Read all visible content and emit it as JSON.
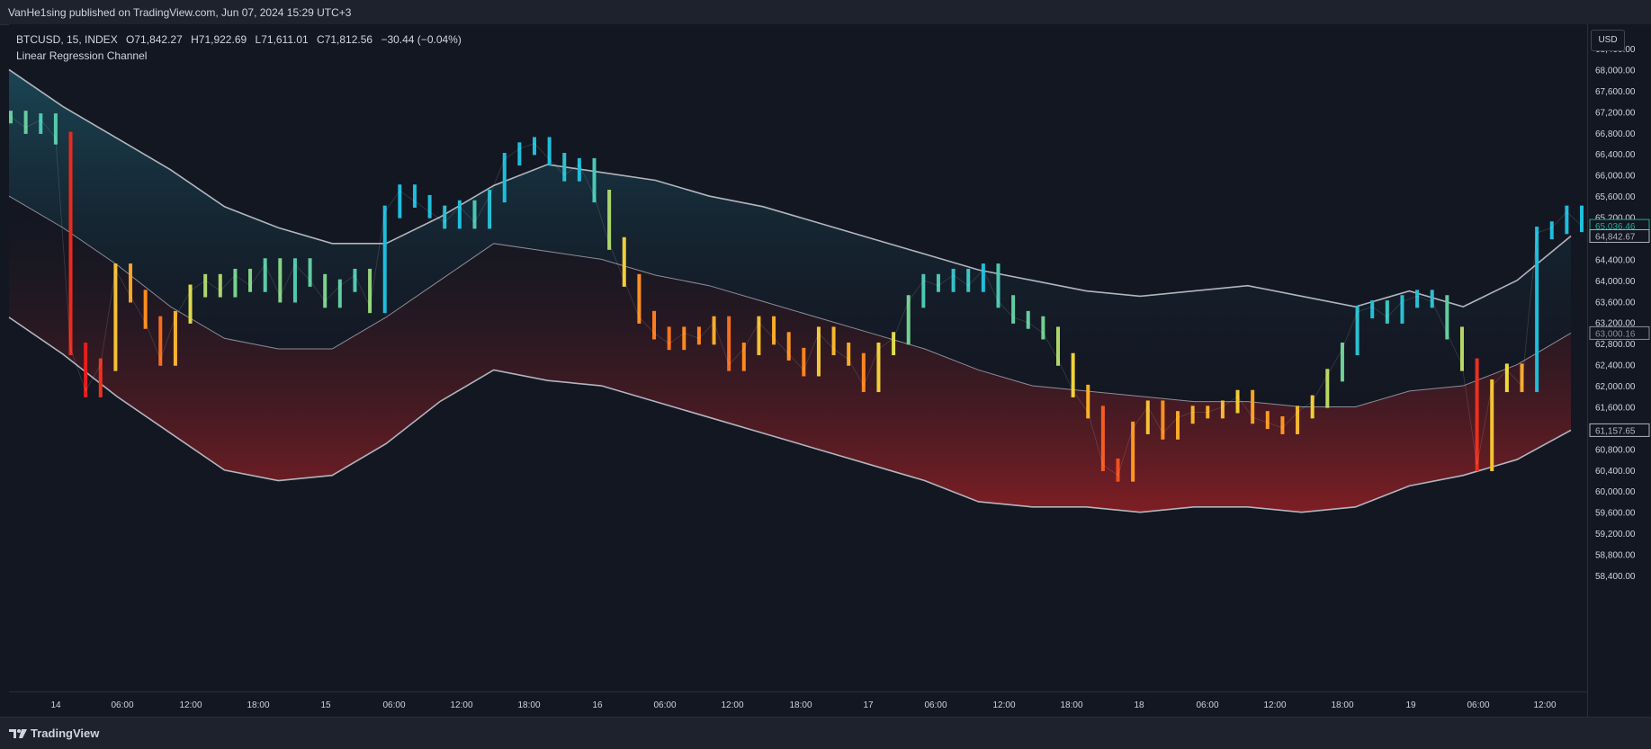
{
  "header": {
    "publisher_line": "VanHe1sing published on TradingView.com, Jun 07, 2024 15:29 UTC+3"
  },
  "legend": {
    "symbol": "BTCUSD, 15, INDEX",
    "open": "O71,842.27",
    "high": "H71,922.69",
    "low": "L71,611.01",
    "close": "C71,812.56",
    "change": "−30.44 (−0.04%)",
    "indicator": "Linear Regression Channel"
  },
  "price_axis": {
    "currency": "USD",
    "ticks": [
      "68,400.00",
      "68,000.00",
      "67,600.00",
      "67,200.00",
      "66,800.00",
      "66,400.00",
      "66,000.00",
      "65,600.00",
      "65,200.00",
      "64,800.00",
      "64,400.00",
      "64,000.00",
      "63,600.00",
      "63,200.00",
      "62,800.00",
      "62,400.00",
      "62,000.00",
      "61,600.00",
      "61,200.00",
      "60,800.00",
      "60,400.00",
      "60,000.00",
      "59,600.00",
      "59,200.00",
      "58,800.00",
      "58,400.00"
    ],
    "labels": {
      "last_price": "65,036.46",
      "upper_channel": "64,842.67",
      "mid_channel": "63,000.16",
      "lower_channel": "61,157.65"
    }
  },
  "time_axis": {
    "ticks": [
      "14",
      "06:00",
      "12:00",
      "18:00",
      "15",
      "06:00",
      "12:00",
      "18:00",
      "16",
      "06:00",
      "12:00",
      "18:00",
      "17",
      "06:00",
      "12:00",
      "18:00",
      "18",
      "06:00",
      "12:00",
      "18:00",
      "19",
      "06:00",
      "12:00"
    ]
  },
  "footer": {
    "brand": "TradingView"
  },
  "colors": {
    "background": "#131722",
    "channel_line": "#b2b5be",
    "mid_line": "#8a8e99",
    "upper_fill": "#1b4a5a",
    "lower_fill": "#8a1f24",
    "last_price_label": "#22ab94"
  },
  "chart_data": {
    "type": "line",
    "title": "BTCUSD, 15, INDEX",
    "ylim": [
      58000,
      68800
    ],
    "x_labels": [
      "14",
      "06:00",
      "12:00",
      "18:00",
      "15",
      "06:00",
      "12:00",
      "18:00",
      "16",
      "06:00",
      "12:00",
      "18:00",
      "17",
      "06:00",
      "12:00",
      "18:00",
      "18",
      "06:00",
      "12:00",
      "18:00",
      "19",
      "06:00",
      "12:00"
    ],
    "series": [
      {
        "name": "Price",
        "values": [
          67100,
          66900,
          67050,
          66700,
          62700,
          61900,
          62400,
          64200,
          63700,
          63200,
          62500,
          63300,
          63800,
          64000,
          63800,
          64100,
          63900,
          64300,
          63700,
          64300,
          64000,
          63600,
          63900,
          64100,
          63500,
          65300,
          65700,
          65500,
          65300,
          65100,
          65400,
          65100,
          65600,
          66300,
          66500,
          66600,
          66300,
          66000,
          66200,
          65600,
          64700,
          64000,
          63300,
          63000,
          62800,
          63000,
          62900,
          63200,
          62400,
          62700,
          63200,
          62900,
          62600,
          62300,
          63000,
          62700,
          62500,
          62000,
          62700,
          62900,
          63600,
          64000,
          63900,
          64100,
          63900,
          64200,
          63600,
          63300,
          63200,
          63000,
          62500,
          61900,
          61500,
          60500,
          60300,
          61200,
          61600,
          61100,
          61400,
          61500,
          61500,
          61600,
          61800,
          61400,
          61300,
          61200,
          61500,
          61700,
          62200,
          62700,
          63400,
          63500,
          63300,
          63600,
          63700,
          63600,
          63000,
          62400,
          60500,
          62000,
          62300,
          62000,
          64900,
          65000,
          65300,
          65036
        ]
      },
      {
        "name": "Upper channel",
        "values": [
          68000,
          67300,
          66700,
          66100,
          65400,
          65000,
          64700,
          64700,
          65200,
          65800,
          66200,
          66050,
          65900,
          65600,
          65400,
          65100,
          64800,
          64500,
          64200,
          64000,
          63800,
          63700,
          63800,
          63900,
          63700,
          63500,
          63800,
          63500,
          64000,
          64842
        ]
      },
      {
        "name": "Middle",
        "values": [
          65600,
          65000,
          64300,
          63500,
          62900,
          62700,
          62700,
          63300,
          64000,
          64700,
          64550,
          64400,
          64100,
          63900,
          63600,
          63300,
          63000,
          62700,
          62300,
          62000,
          61900,
          61800,
          61700,
          61700,
          61600,
          61600,
          61900,
          62000,
          62400,
          63000
        ]
      },
      {
        "name": "Lower channel",
        "values": [
          63300,
          62600,
          61800,
          61100,
          60400,
          60200,
          60300,
          60900,
          61700,
          62300,
          62100,
          62000,
          61700,
          61400,
          61100,
          60800,
          60500,
          60200,
          59800,
          59700,
          59700,
          59600,
          59700,
          59700,
          59600,
          59700,
          60100,
          60300,
          60600,
          61157
        ]
      }
    ]
  }
}
